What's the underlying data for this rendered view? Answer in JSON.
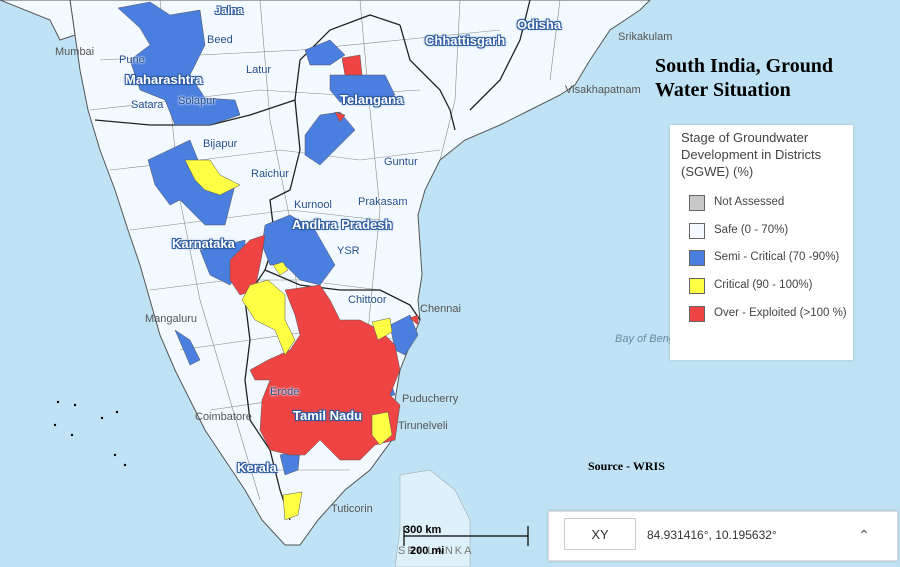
{
  "map": {
    "title": "South India, Ground Water Situation",
    "source": "Source - WRIS",
    "legend": {
      "heading": "Stage of Groundwater Development in Districts (SGWE) (%)",
      "items": [
        {
          "label": "Not Assessed",
          "color": "#c8c8c8"
        },
        {
          "label": "Safe (0 - 70%)",
          "color": "#f4faff"
        },
        {
          "label": "Semi - Critical (70 -90%)",
          "color": "#4a7fe0"
        },
        {
          "label": "Critical (90 - 100%)",
          "color": "#ffff44"
        },
        {
          "label": "Over - Exploited (>100 %)",
          "color": "#ee4444"
        }
      ]
    },
    "states": [
      "Maharashtra",
      "Telangana",
      "Andhra Pradesh",
      "Karnataka",
      "Tamil Nadu",
      "Kerala",
      "Odisha",
      "Chhattisgarh"
    ],
    "cities": [
      "Jalna",
      "Beed",
      "Pune",
      "Latur",
      "Satara",
      "Solapur",
      "Bijapur",
      "Raichur",
      "Kurnool",
      "Prakasam",
      "Guntur",
      "YSR",
      "Chittoor",
      "Chennai",
      "Erode",
      "Tirunelveli",
      "Tuticorin",
      "Coimbatore",
      "Visakhapatnam",
      "Mumbai",
      "Mangaluru",
      "Puducherry",
      "Srikakulam"
    ],
    "sea_labels": [
      "Bay of Bengal"
    ],
    "country_labels": [
      "SRI LANKA"
    ],
    "scale": {
      "km": "300 km",
      "mi": "200 mi"
    },
    "coord": {
      "button": "XY",
      "text": "84.931416°, 10.195632°"
    }
  }
}
